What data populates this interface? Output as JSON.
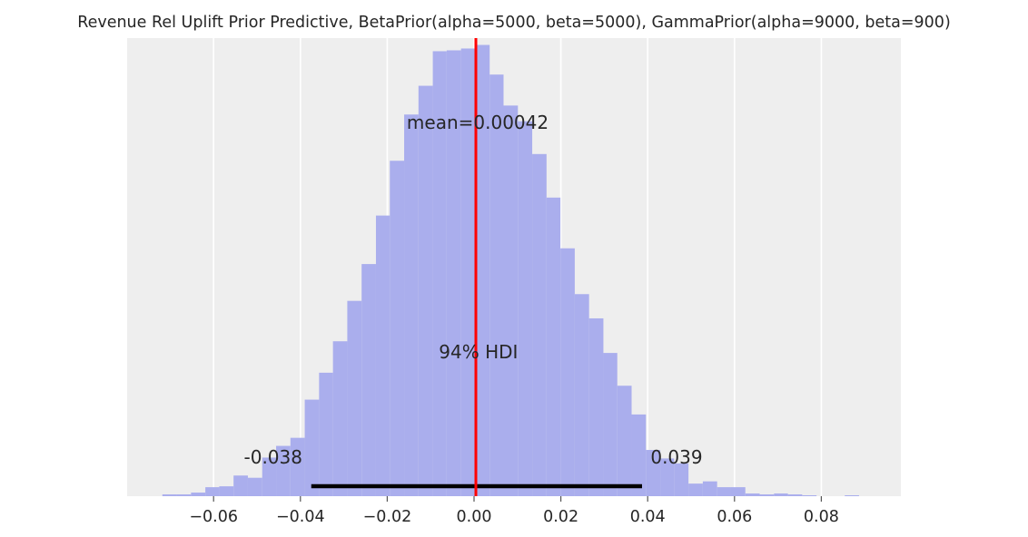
{
  "chart_data": {
    "type": "bar",
    "title": "Revenue Rel Uplift Prior Predictive, BetaPrior(alpha=5000, beta=5000), GammaPrior(alpha=9000, beta=900)",
    "xlabel": "",
    "ylabel": "",
    "xlim": [
      -0.08,
      0.0985
    ],
    "xticks": [
      -0.06,
      -0.04,
      -0.02,
      0.0,
      0.02,
      0.04,
      0.06,
      0.08
    ],
    "xtick_labels": [
      "−0.06",
      "−0.04",
      "−0.02",
      "0.00",
      "0.02",
      "0.04",
      "0.06",
      "0.08"
    ],
    "ylim": [
      0,
      100
    ],
    "grid": true,
    "histogram": {
      "bin_edges": [
        -0.0718,
        -0.0685,
        -0.0652,
        -0.0619,
        -0.0587,
        -0.0554,
        -0.0521,
        -0.0488,
        -0.0456,
        -0.0423,
        -0.039,
        -0.0357,
        -0.0325,
        -0.0292,
        -0.0259,
        -0.0226,
        -0.0194,
        -0.0161,
        -0.0128,
        -0.0095,
        -0.0063,
        -0.003,
        0.0003,
        0.0036,
        0.0068,
        0.0101,
        0.0134,
        0.0167,
        0.0199,
        0.0232,
        0.0265,
        0.0298,
        0.033,
        0.0363,
        0.0396,
        0.0429,
        0.0461,
        0.0494,
        0.0527,
        0.056,
        0.0592,
        0.0625,
        0.0658,
        0.0691,
        0.0723,
        0.0756,
        0.0789,
        0.0822,
        0.0854,
        0.0887,
        0.092
      ],
      "density": [
        0.4,
        0.4,
        0.8,
        2.0,
        2.2,
        4.6,
        4.1,
        8.6,
        11.2,
        13.0,
        21.5,
        27.5,
        34.5,
        43.5,
        51.7,
        62.5,
        74.7,
        85.0,
        91.4,
        99.1,
        99.3,
        99.7,
        100.5,
        93.9,
        87.0,
        83.5,
        76.2,
        66.5,
        55.2,
        45.0,
        39.6,
        31.9,
        24.6,
        18.2,
        10.3,
        8.4,
        7.3,
        2.8,
        3.3,
        2.0,
        2.0,
        0.6,
        0.4,
        0.6,
        0.4,
        0.2,
        0.0,
        0.0,
        0.2,
        0.0
      ],
      "color": "#aaaeed"
    },
    "mean": 0.00042,
    "mean_line_color": "#ff0000",
    "hdi": {
      "low": -0.0375,
      "high": 0.0387,
      "low_label": "-0.038",
      "high_label": "0.039",
      "label": "94% HDI"
    },
    "annotations": {
      "mean_label": "mean=0.00042"
    }
  }
}
